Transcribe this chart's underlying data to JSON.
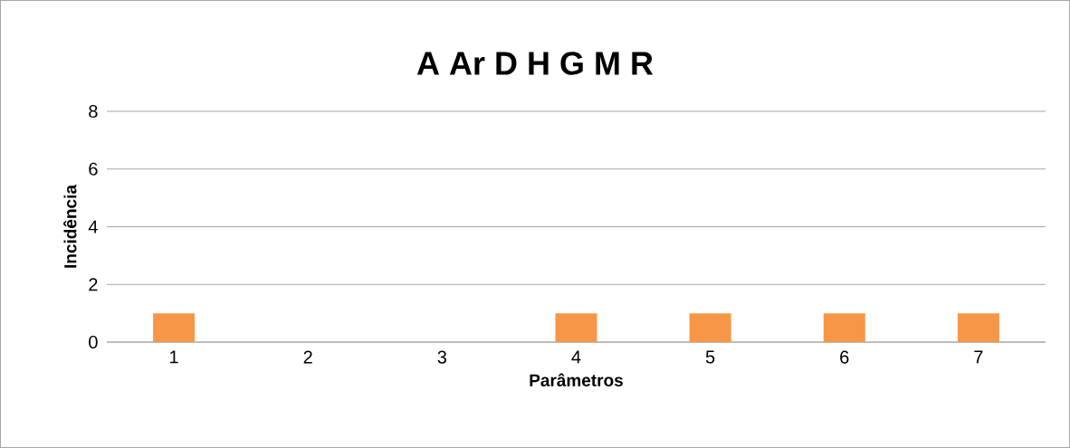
{
  "chart_data": {
    "type": "bar",
    "title": "A Ar D H G M R",
    "xlabel": "Parâmetros",
    "ylabel": "Incidência",
    "categories": [
      "1",
      "2",
      "3",
      "4",
      "5",
      "6",
      "7"
    ],
    "values": [
      1,
      0,
      0,
      1,
      1,
      1,
      1
    ],
    "color": "#f79646",
    "ylim": [
      0,
      8
    ],
    "yticks": [
      0,
      2,
      4,
      6,
      8
    ],
    "grid": "y"
  }
}
